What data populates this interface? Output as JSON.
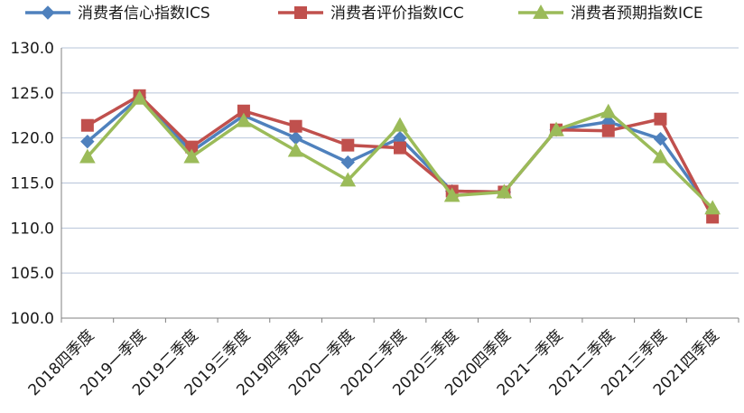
{
  "chart_data": {
    "type": "line",
    "categories": [
      "2018四季度",
      "2019一季度",
      "2019二季度",
      "2019三季度",
      "2019四季度",
      "2020一季度",
      "2020二季度",
      "2020三季度",
      "2020四季度",
      "2021一季度",
      "2021二季度",
      "2021三季度",
      "2021四季度"
    ],
    "series": [
      {
        "name": "消费者信心指数ICS",
        "color": "#4f81bd",
        "marker": "diamond",
        "values": [
          119.6,
          124.5,
          118.5,
          122.5,
          120.0,
          117.3,
          120.0,
          114.1,
          114.0,
          120.9,
          121.8,
          119.9,
          111.8
        ]
      },
      {
        "name": "消费者评价指数ICC",
        "color": "#c0504d",
        "marker": "square",
        "values": [
          121.4,
          124.7,
          119.0,
          123.0,
          121.3,
          119.2,
          118.9,
          114.1,
          114.0,
          120.9,
          120.8,
          122.1,
          111.2
        ]
      },
      {
        "name": "消费者预期指数ICE",
        "color": "#9bbb59",
        "marker": "triangle",
        "values": [
          117.9,
          124.4,
          117.9,
          121.9,
          118.6,
          115.3,
          121.4,
          113.6,
          114.0,
          120.9,
          122.9,
          117.9,
          112.2
        ]
      }
    ],
    "y_ticks": [
      "100.0",
      "105.0",
      "110.0",
      "115.0",
      "120.0",
      "125.0",
      "130.0"
    ],
    "ylim": [
      100,
      130
    ],
    "grid": true,
    "legend_position": "top"
  }
}
